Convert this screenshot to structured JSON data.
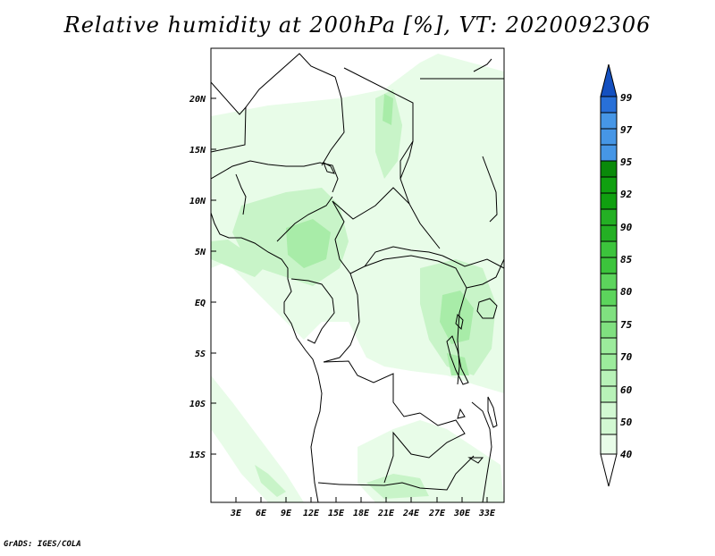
{
  "title": "Relative humidity at 200hPa [%], VT: 2020092306",
  "footer": "GrADS: IGES/COLA",
  "map": {
    "region": "Central Africa",
    "lon_range": [
      0,
      35
    ],
    "lat_range": [
      -20,
      25
    ],
    "lat_ticks": [
      "20N",
      "15N",
      "10N",
      "5N",
      "EQ",
      "5S",
      "10S",
      "15S"
    ],
    "lon_ticks": [
      "3E",
      "6E",
      "9E",
      "12E",
      "15E",
      "18E",
      "21E",
      "24E",
      "27E",
      "30E",
      "33E"
    ]
  },
  "colorbar": {
    "levels": [
      "40",
      "50",
      "60",
      "70",
      "75",
      "80",
      "85",
      "90",
      "92",
      "95",
      "97",
      "99"
    ],
    "colors": [
      "#e8fce8",
      "#d2f8d2",
      "#b8f2b8",
      "#9ceb9c",
      "#80e080",
      "#5cd45c",
      "#3cc43c",
      "#24b024",
      "#10a010",
      "#0a8a0a",
      "#4696e6",
      "#2870d8",
      "#1450c0"
    ],
    "lower_color": "#ffffff"
  },
  "colors": {
    "shade_light": "#e8fce8",
    "shade_mid": "#c8f4c8",
    "shade_dark": "#a8eca8",
    "coast": "#000000"
  }
}
